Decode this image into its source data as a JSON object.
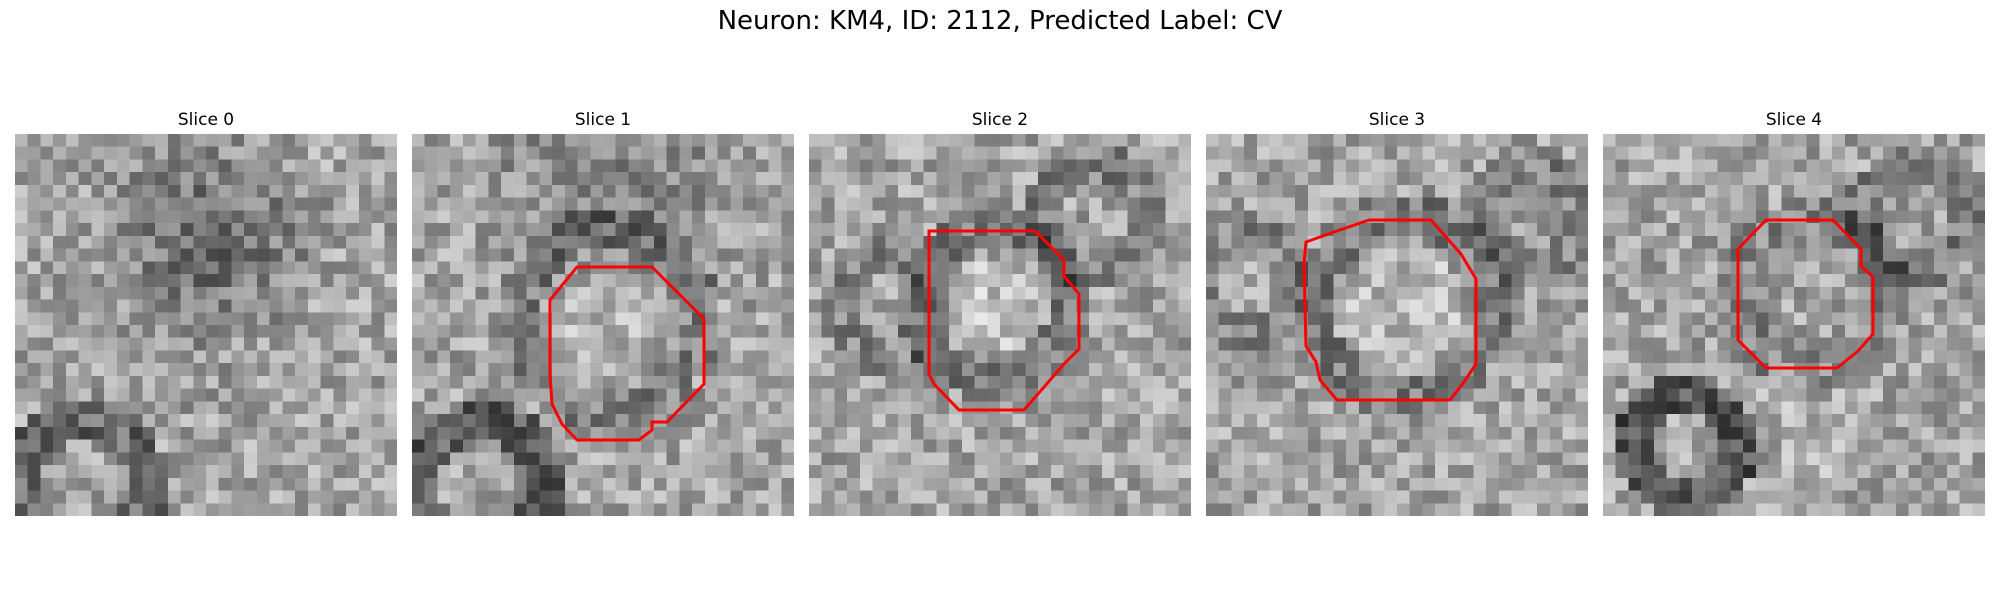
{
  "figure": {
    "title": "Neuron: KM4, ID: 2112, Predicted Label: CV",
    "contour_color": "#ff0000",
    "slices": [
      {
        "label": "Slice 0",
        "has_contour": false
      },
      {
        "label": "Slice 1",
        "has_contour": true
      },
      {
        "label": "Slice 2",
        "has_contour": true
      },
      {
        "label": "Slice 3",
        "has_contour": true
      },
      {
        "label": "Slice 4",
        "has_contour": true
      }
    ]
  }
}
